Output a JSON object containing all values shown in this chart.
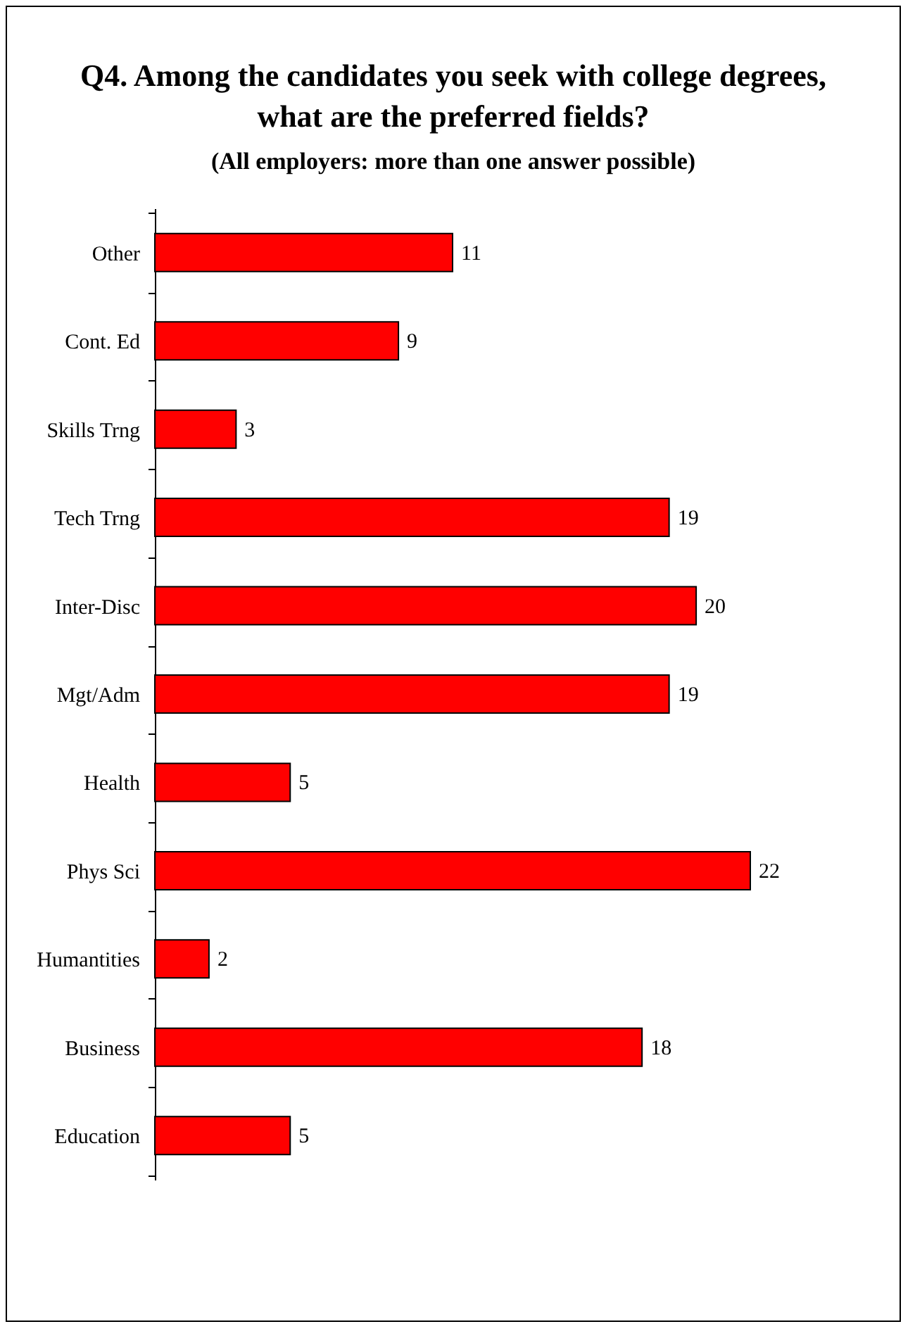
{
  "chart_data": {
    "type": "bar",
    "orientation": "horizontal",
    "title": "Q4. Among the candidates you seek with college degrees, what are the preferred fields?",
    "subtitle": "(All employers: more than one answer possible)",
    "categories": [
      "Other",
      "Cont. Ed",
      "Skills Trng",
      "Tech Trng",
      "Inter-Disc",
      "Mgt/Adm",
      "Health",
      "Phys Sci",
      "Humantities",
      "Business",
      "Education"
    ],
    "values": [
      11,
      9,
      3,
      19,
      20,
      19,
      5,
      22,
      2,
      18,
      5
    ],
    "color": "#ff0000",
    "data_labels": true
  }
}
